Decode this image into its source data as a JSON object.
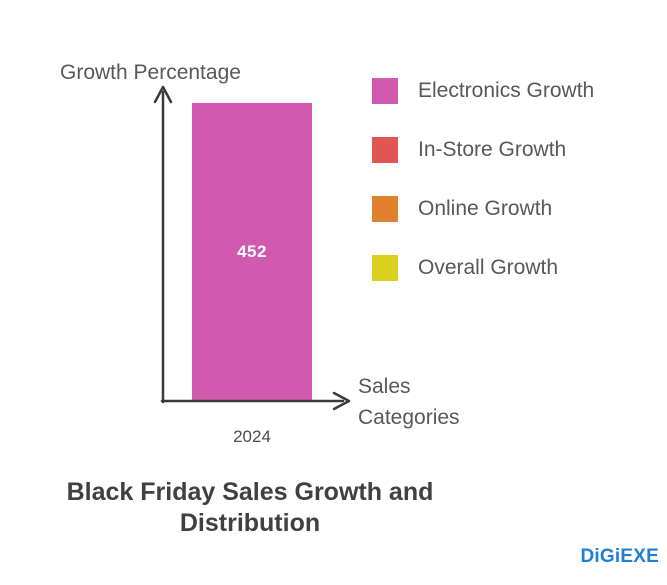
{
  "chart_data": {
    "type": "bar",
    "title": "Black Friday Sales Growth and Distribution",
    "ylabel": "Growth Percentage",
    "xlabel": "Sales Categories",
    "categories": [
      "2024"
    ],
    "series": [
      {
        "name": "Electronics Growth",
        "color": "#d25aae",
        "values": [
          452
        ]
      }
    ],
    "ylim": [
      0,
      452
    ],
    "grid": false,
    "legend_position": "right",
    "legend": [
      {
        "label": "Electronics Growth",
        "color": "#d25aae"
      },
      {
        "label": "In-Store Growth",
        "color": "#e25555"
      },
      {
        "label": "Online Growth",
        "color": "#e0812e"
      },
      {
        "label": "Overall Growth",
        "color": "#dcd01f"
      }
    ],
    "axis_color": "#3a3a3a",
    "value_label_color": "#ffffff"
  },
  "branding": {
    "logo_text": "DiGiEXE",
    "logo_color": "#1e7fd8"
  }
}
